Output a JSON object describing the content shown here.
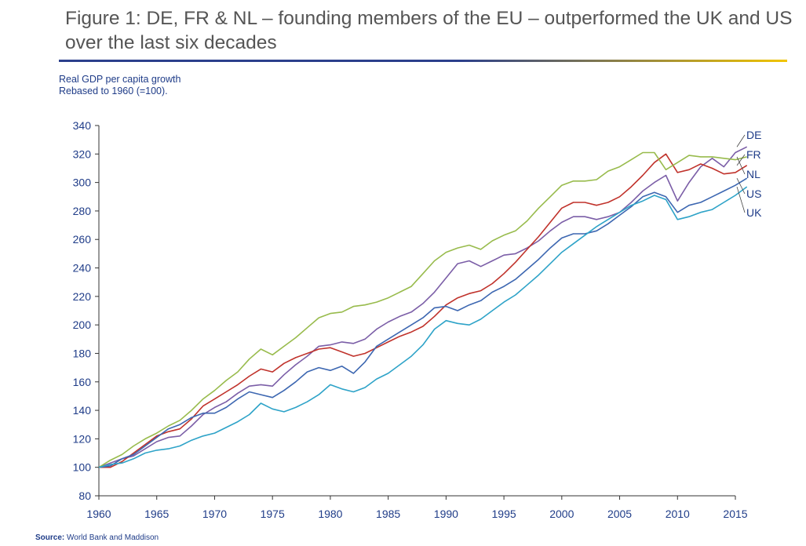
{
  "title": "Figure 1: DE, FR & NL – founding members of the EU – outperformed the UK and US over the last six decades",
  "subtitle_line1": "Real GDP per capita growth",
  "subtitle_line2": "Rebased to 1960 (=100).",
  "source_label": "Source:",
  "source_text": "World Bank and Maddison",
  "colors": {
    "rule_blue": "#2b3f8c",
    "rule_gold": "#f2c500",
    "axis_text": "#1f3c88",
    "axis_line": "#333333"
  },
  "chart_data": {
    "type": "line",
    "x_start": 1960,
    "x_end": 2015,
    "xlim": [
      1960,
      2015
    ],
    "ylim": [
      80,
      340
    ],
    "y_ticks": [
      80,
      100,
      120,
      140,
      160,
      180,
      200,
      220,
      240,
      260,
      280,
      300,
      320,
      340
    ],
    "x_ticks": [
      1960,
      1965,
      1970,
      1975,
      1980,
      1985,
      1990,
      1995,
      2000,
      2005,
      2010,
      2015
    ],
    "grid": false,
    "legend": "right-edge labels",
    "series": [
      {
        "name": "DE",
        "color": "#7b5ea7",
        "values": [
          100,
          103,
          106,
          108,
          113,
          118,
          121,
          122,
          129,
          137,
          142,
          146,
          152,
          157,
          158,
          157,
          165,
          172,
          178,
          185,
          186,
          188,
          187,
          190,
          197,
          202,
          206,
          209,
          215,
          223,
          233,
          243,
          245,
          241,
          245,
          249,
          250,
          254,
          259,
          266,
          272,
          276,
          276,
          274,
          276,
          279,
          286,
          294,
          300,
          305,
          287,
          300,
          311,
          317,
          311,
          321,
          325
        ]
      },
      {
        "name": "FR",
        "color": "#c0322b",
        "values": [
          100,
          100,
          104,
          110,
          116,
          122,
          125,
          127,
          134,
          143,
          148,
          153,
          158,
          164,
          169,
          167,
          173,
          177,
          180,
          183,
          184,
          181,
          178,
          180,
          184,
          188,
          192,
          195,
          199,
          206,
          214,
          219,
          222,
          224,
          229,
          236,
          244,
          253,
          262,
          272,
          282,
          286,
          286,
          284,
          286,
          290,
          297,
          305,
          314,
          320,
          307,
          309,
          313,
          310,
          306,
          307,
          312
        ]
      },
      {
        "name": "NL",
        "color": "#98bb4c",
        "values": [
          100,
          105,
          109,
          115,
          120,
          124,
          129,
          133,
          140,
          148,
          154,
          161,
          167,
          176,
          183,
          179,
          185,
          191,
          198,
          205,
          208,
          209,
          213,
          214,
          216,
          219,
          223,
          227,
          236,
          245,
          251,
          254,
          256,
          253,
          259,
          263,
          266,
          273,
          282,
          290,
          298,
          301,
          301,
          302,
          308,
          311,
          316,
          321,
          321,
          309,
          314,
          319,
          318,
          318,
          317,
          316,
          318
        ]
      },
      {
        "name": "US",
        "color": "#3d67b1",
        "values": [
          100,
          101,
          106,
          109,
          115,
          121,
          127,
          130,
          135,
          138,
          138,
          142,
          148,
          153,
          151,
          149,
          154,
          160,
          167,
          170,
          168,
          171,
          166,
          174,
          185,
          190,
          195,
          200,
          205,
          212,
          213,
          210,
          214,
          217,
          223,
          227,
          232,
          239,
          246,
          254,
          261,
          264,
          264,
          266,
          271,
          277,
          283,
          290,
          293,
          290,
          279,
          284,
          286,
          290,
          294,
          298,
          303
        ]
      },
      {
        "name": "UK",
        "color": "#2ea3c8",
        "values": [
          100,
          102,
          103,
          106,
          110,
          112,
          113,
          115,
          119,
          122,
          124,
          128,
          132,
          137,
          145,
          141,
          139,
          142,
          146,
          151,
          158,
          155,
          153,
          156,
          162,
          166,
          172,
          178,
          186,
          197,
          203,
          201,
          200,
          204,
          210,
          216,
          221,
          228,
          235,
          243,
          251,
          257,
          263,
          269,
          274,
          279,
          284,
          287,
          291,
          288,
          274,
          276,
          279,
          281,
          286,
          291,
          297
        ]
      }
    ]
  }
}
